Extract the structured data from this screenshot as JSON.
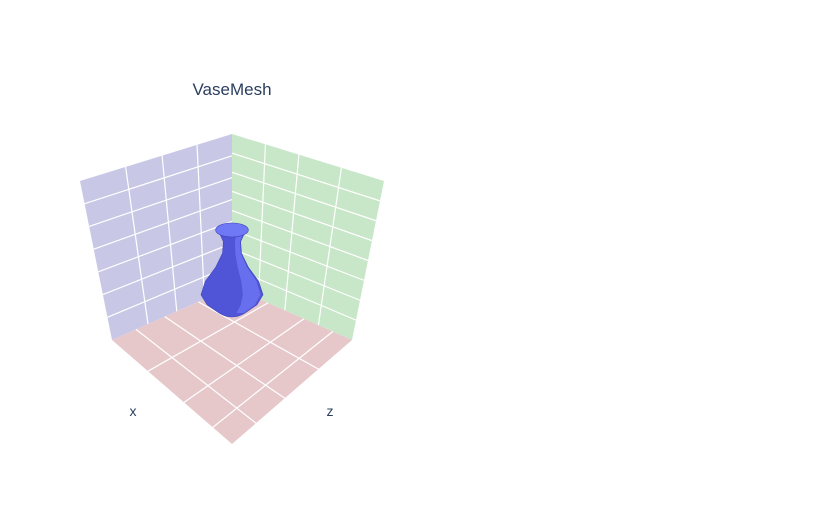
{
  "chart_data": {
    "type": "mesh3d",
    "title": "VaseMesh",
    "axis_labels": {
      "x": "x",
      "z": "z"
    },
    "grid": true,
    "colors": {
      "floor": "#e6c8cb",
      "left_wall": "#c8c8e6",
      "right_wall": "#c8e6c8",
      "grid": "#ffffff",
      "mesh_body": "#5055d8",
      "mesh_highlight": "#6f78f5",
      "mesh_shadow": "#3f43b8",
      "axis_text": "#2a3f5f"
    },
    "vase_profile": {
      "z": [
        0.0,
        0.1,
        0.22,
        0.38,
        0.55,
        0.72,
        0.86,
        0.95,
        1.0
      ],
      "r": [
        0.3,
        0.58,
        0.72,
        0.62,
        0.38,
        0.22,
        0.2,
        0.28,
        0.38
      ]
    }
  }
}
